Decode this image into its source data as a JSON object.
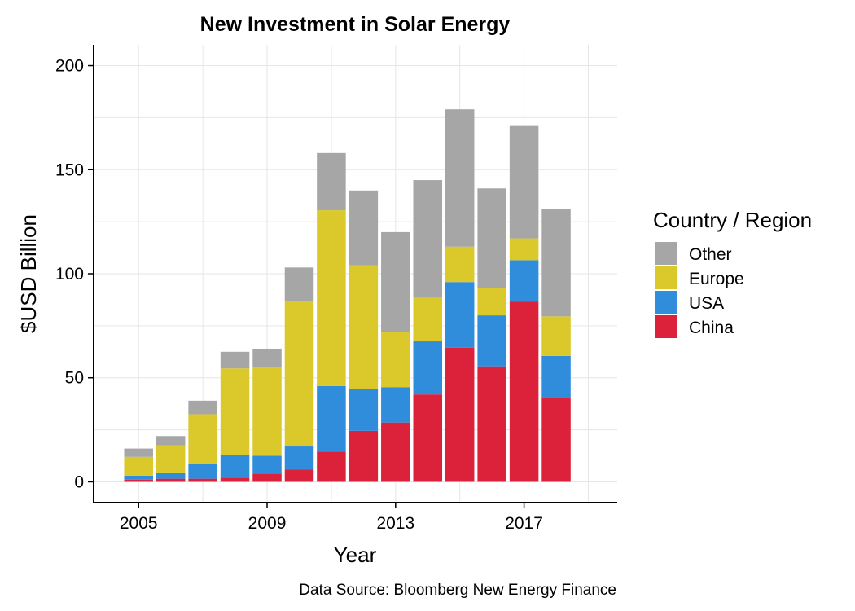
{
  "chart_data": {
    "type": "bar",
    "stacked": true,
    "title": "New Investment in Solar Energy",
    "xlabel": "Year",
    "ylabel": "$USD Billion",
    "caption": "Data Source: Bloomberg New Energy Finance",
    "xlim": [
      2003.6,
      2019.9
    ],
    "ylim": [
      -10,
      210
    ],
    "x_ticks": [
      2005,
      2009,
      2013,
      2017
    ],
    "y_ticks": [
      0,
      50,
      100,
      150,
      200
    ],
    "grid": true,
    "legend": {
      "title": "Country / Region",
      "position": "right",
      "entries": [
        "Other",
        "Europe",
        "USA",
        "China"
      ]
    },
    "x": [
      2005,
      2006,
      2007,
      2008,
      2009,
      2010,
      2011,
      2012,
      2013,
      2014,
      2015,
      2016,
      2017,
      2018
    ],
    "series": [
      {
        "name": "China",
        "color": "#dc213a",
        "values": [
          1,
          1.5,
          1.5,
          2,
          4,
          6,
          14.5,
          24.5,
          28.5,
          42,
          64.5,
          55.5,
          86.5,
          40.5
        ]
      },
      {
        "name": "USA",
        "color": "#2f8ddc",
        "values": [
          2,
          3,
          7,
          11,
          8.5,
          11,
          31.5,
          20,
          17,
          25.5,
          31.5,
          24.5,
          20,
          20
        ]
      },
      {
        "name": "Europe",
        "color": "#dbc92b",
        "values": [
          9,
          13,
          24,
          41.5,
          42.5,
          70,
          84.5,
          59.5,
          26.5,
          21,
          17,
          13,
          10.5,
          19
        ]
      },
      {
        "name": "Other",
        "color": "#a6a6a6",
        "values": [
          4,
          4.5,
          6.5,
          8,
          9,
          16,
          27.5,
          36,
          48,
          56.5,
          66,
          48,
          54,
          51.5
        ]
      }
    ]
  }
}
